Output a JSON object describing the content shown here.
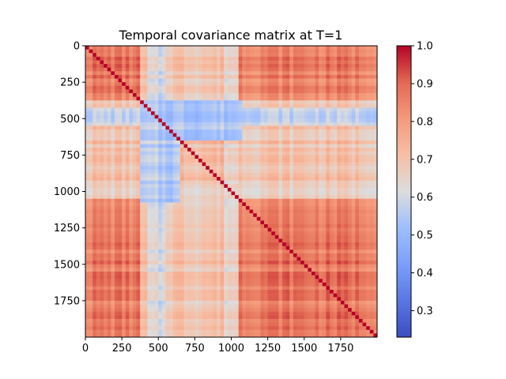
{
  "chart_data": {
    "type": "heatmap",
    "title": "Temporal covariance matrix at T=1",
    "xlabel": "",
    "ylabel": "",
    "matrix_size": 2000,
    "xlim": [
      0,
      2000
    ],
    "ylim": [
      0,
      2000
    ],
    "y_axis_inverted": true,
    "x_ticks": [
      0,
      250,
      500,
      750,
      1000,
      1250,
      1500,
      1750
    ],
    "x_tick_labels": [
      "0",
      "250",
      "500",
      "750",
      "1000",
      "1250",
      "1500",
      "1750"
    ],
    "y_ticks": [
      0,
      250,
      500,
      750,
      1000,
      1250,
      1500,
      1750
    ],
    "y_tick_labels": [
      "0",
      "250",
      "500",
      "750",
      "1000",
      "1250",
      "1500",
      "1750"
    ],
    "colormap": "coolwarm",
    "color_range": [
      0.23,
      1.0
    ],
    "colorbar_ticks": [
      0.3,
      0.4,
      0.5,
      0.6,
      0.7,
      0.8,
      0.9,
      1.0
    ],
    "colorbar_tick_labels": [
      "0.3",
      "0.4",
      "0.5",
      "0.6",
      "0.7",
      "0.8",
      "0.9",
      "1.0"
    ],
    "diagonal_value": 1.0,
    "regions": [
      {
        "x": [
          0,
          380
        ],
        "y": [
          0,
          380
        ],
        "mean_value": 0.87
      },
      {
        "x": [
          0,
          380
        ],
        "y": [
          1080,
          2000
        ],
        "mean_value": 0.86
      },
      {
        "x": [
          1050,
          2000
        ],
        "y": [
          0,
          380
        ],
        "mean_value": 0.87
      },
      {
        "x": [
          1050,
          2000
        ],
        "y": [
          1080,
          2000
        ],
        "mean_value": 0.87
      },
      {
        "x": [
          380,
          650
        ],
        "y": [
          380,
          1080
        ],
        "mean_value": 0.55
      },
      {
        "x": [
          650,
          1050
        ],
        "y": [
          650,
          1050
        ],
        "mean_value": 0.72
      }
    ],
    "low_bands": [
      {
        "axis_range": [
          420,
          560
        ],
        "mean_value": 0.52
      },
      {
        "axis_range": [
          960,
          1060
        ],
        "mean_value": 0.58
      }
    ],
    "grid": false,
    "legend": "colorbar-right"
  }
}
